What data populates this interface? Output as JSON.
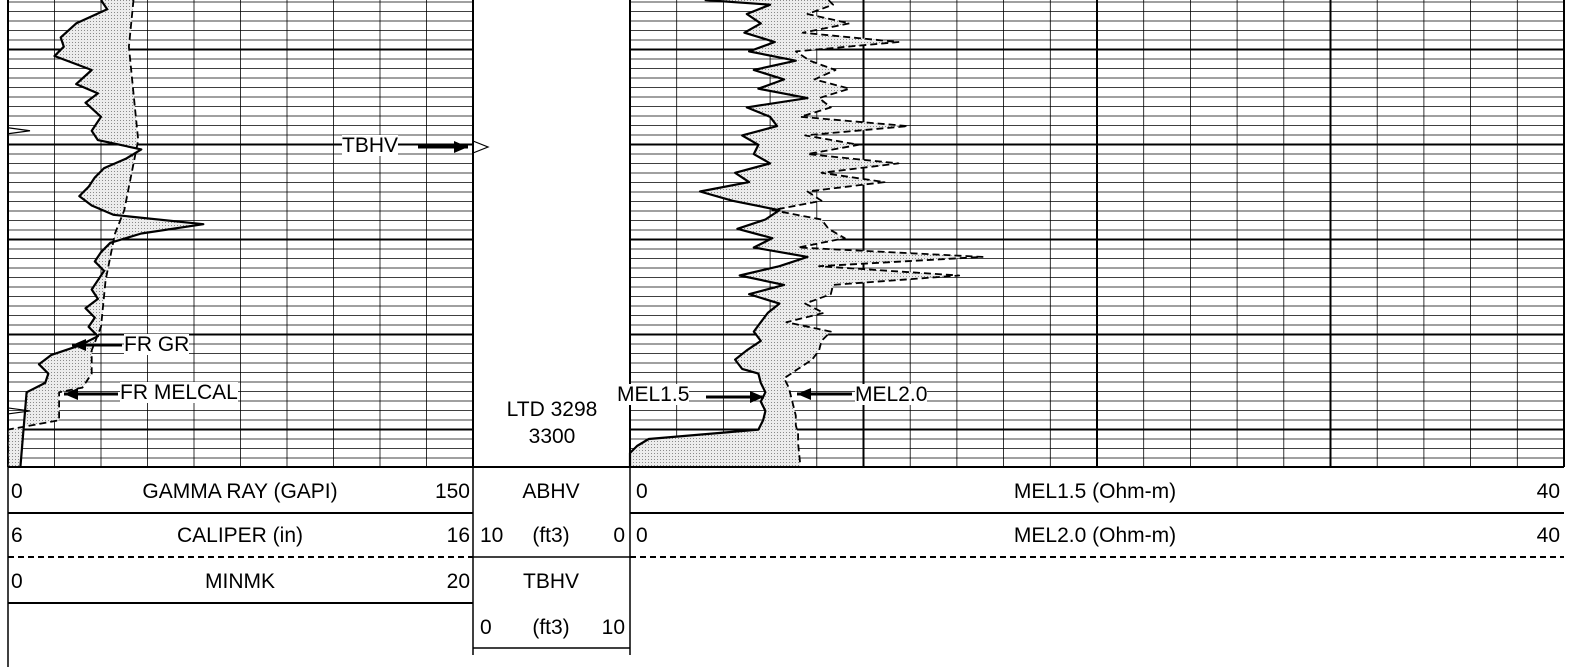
{
  "tracks": {
    "track1": {
      "curves": [
        {
          "name": "GAMMA RAY (GAPI)",
          "min": "0",
          "max": "150",
          "line": "solid"
        },
        {
          "name": "CALIPER (in)",
          "min": "6",
          "max": "16",
          "line": "dashed"
        },
        {
          "name": "MINMK",
          "min": "0",
          "max": "20",
          "line": "solid"
        }
      ],
      "annotations": {
        "gr": "FR GR",
        "melcal": "FR MELCAL"
      }
    },
    "depth_track": {
      "abhv": {
        "name": "ABHV",
        "unit": "(ft3)",
        "min": "10",
        "max": "0"
      },
      "tbhv": {
        "name": "TBHV",
        "unit": "(ft3)",
        "min": "0",
        "max": "10"
      },
      "ltd": "LTD 3298",
      "depth": "3300"
    },
    "track2": {
      "curves": [
        {
          "name": "MEL1.5 (Ohm-m)",
          "min": "0",
          "max": "40",
          "line": "solid"
        },
        {
          "name": "MEL2.0 (Ohm-m)",
          "min": "0",
          "max": "40",
          "line": "dashed"
        }
      ],
      "annotations": {
        "tbhv": "TBHV",
        "mel15": "MEL1.5",
        "mel20": "MEL2.0"
      }
    }
  },
  "colors": {
    "line": "#000000",
    "fill": "#d0d0d0",
    "background": "#ffffff"
  },
  "chart_data": {
    "type": "line",
    "log_tracks": [
      {
        "track": "track1",
        "series": [
          {
            "name": "GAMMA RAY (GAPI)",
            "scale": [
              0,
              150
            ],
            "depth_frac": [
              0,
              0.02,
              0.05,
              0.08,
              0.1,
              0.12,
              0.15,
              0.18,
              0.2,
              0.22,
              0.25,
              0.28,
              0.3,
              0.32,
              0.34,
              0.36,
              0.38,
              0.4,
              0.42,
              0.44,
              0.46,
              0.48,
              0.5,
              0.52,
              0.54,
              0.56,
              0.58,
              0.6,
              0.62,
              0.64,
              0.66,
              0.68,
              0.7,
              0.72,
              0.74,
              0.76,
              0.78,
              0.8,
              0.82,
              0.84,
              1
            ],
            "values": [
              30,
              32,
              22,
              17,
              18,
              15,
              27,
              22,
              29,
              25,
              30,
              27,
              29,
              43,
              38,
              31,
              28,
              26,
              23,
              27,
              34,
              63,
              43,
              33,
              30,
              28,
              31,
              29,
              27,
              29,
              25,
              28,
              26,
              29,
              23,
              14,
              10,
              13,
              12,
              6,
              4
            ]
          },
          {
            "name": "CALIPER (in)",
            "scale": [
              6,
              16
            ],
            "line": "dashed",
            "depth_frac": [
              0,
              0.1,
              0.2,
              0.3,
              0.4,
              0.45,
              0.5,
              0.6,
              0.7,
              0.75,
              0.8,
              0.83,
              0.84,
              0.9,
              0.92,
              0.94,
              1
            ],
            "values": [
              8.7,
              8.6,
              8.7,
              8.8,
              8.6,
              8.5,
              8.3,
              8.1,
              8.0,
              7.8,
              7.8,
              7.6,
              7.1,
              7.1,
              6.0,
              6.0,
              6.0
            ]
          }
        ],
        "markers": [
          0.28,
          0.88
        ]
      },
      {
        "track": "track2",
        "series": [
          {
            "name": "MEL1.5 (Ohm-m)",
            "scale": [
              0,
              40
            ],
            "depth_frac": [
              0,
              0.01,
              0.03,
              0.05,
              0.07,
              0.09,
              0.11,
              0.13,
              0.15,
              0.17,
              0.19,
              0.21,
              0.23,
              0.25,
              0.27,
              0.29,
              0.31,
              0.33,
              0.35,
              0.37,
              0.39,
              0.41,
              0.43,
              0.45,
              0.47,
              0.49,
              0.51,
              0.53,
              0.55,
              0.57,
              0.59,
              0.61,
              0.63,
              0.65,
              0.67,
              0.69,
              0.71,
              0.73,
              0.75,
              0.77,
              0.79,
              0.8,
              0.82,
              0.84,
              0.86,
              0.88,
              0.9,
              0.92,
              0.94,
              0.955,
              0.97,
              1
            ],
            "values": [
              3.2,
              6.0,
              5.0,
              5.6,
              4.9,
              6.2,
              5.1,
              7.1,
              5.3,
              6.6,
              5.5,
              7.6,
              5.0,
              6.0,
              6.3,
              4.8,
              5.5,
              5.3,
              6.0,
              4.5,
              5.1,
              3.0,
              4.4,
              6.4,
              5.8,
              4.6,
              6.1,
              5.3,
              7.6,
              6.4,
              4.7,
              6.6,
              5.1,
              6.4,
              5.9,
              5.6,
              5.3,
              5.6,
              5.0,
              4.5,
              4.8,
              5.5,
              5.6,
              5.8,
              5.6,
              5.8,
              5.7,
              5.5,
              0.8,
              0.3,
              0.0,
              0.0
            ]
          },
          {
            "name": "MEL2.0 (Ohm-m)",
            "scale": [
              0,
              40
            ],
            "line": "dashed",
            "depth_frac": [
              0,
              0.01,
              0.03,
              0.05,
              0.07,
              0.09,
              0.11,
              0.13,
              0.15,
              0.17,
              0.19,
              0.21,
              0.23,
              0.25,
              0.27,
              0.29,
              0.31,
              0.33,
              0.35,
              0.37,
              0.39,
              0.41,
              0.43,
              0.45,
              0.47,
              0.49,
              0.51,
              0.53,
              0.55,
              0.57,
              0.59,
              0.61,
              0.63,
              0.65,
              0.67,
              0.69,
              0.71,
              0.73,
              0.75,
              0.77,
              0.79,
              0.81,
              0.83,
              0.85,
              0.87,
              0.89,
              0.91,
              0.93,
              0.95,
              1
            ],
            "values": [
              8.5,
              8.7,
              7.6,
              9.4,
              7.4,
              11.5,
              7.1,
              7.7,
              8.8,
              7.9,
              9.4,
              8.1,
              8.6,
              7.3,
              11.9,
              7.5,
              9.8,
              7.6,
              11.5,
              8.2,
              10.9,
              7.6,
              8.2,
              6.1,
              8.2,
              8.5,
              9.2,
              7.2,
              15.1,
              8.1,
              14.1,
              8.7,
              8.6,
              7.5,
              8.3,
              6.7,
              8.6,
              8.2,
              8.1,
              7.8,
              7.2,
              6.6,
              6.8,
              6.9,
              7.0,
              7.1,
              7.1,
              7.2,
              7.2,
              7.3
            ]
          }
        ]
      }
    ]
  }
}
